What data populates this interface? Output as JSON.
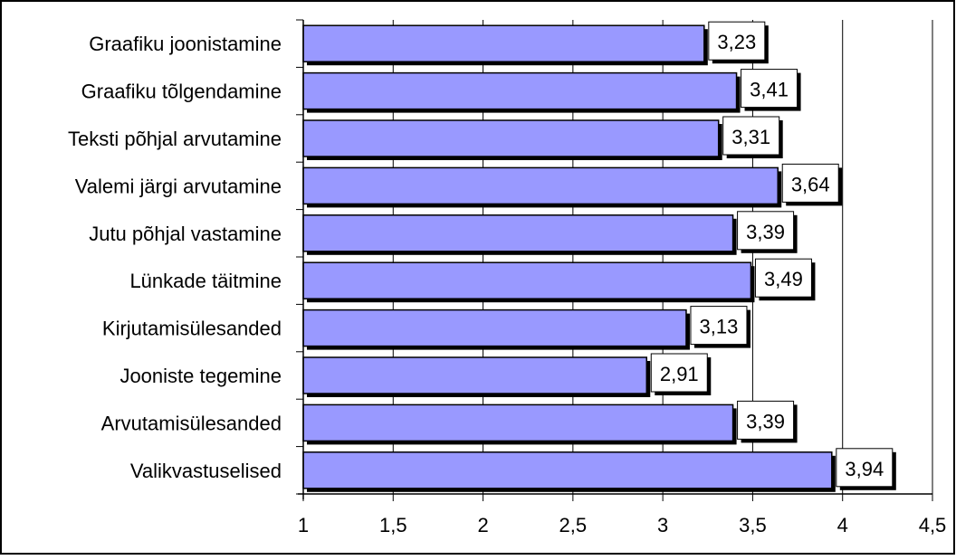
{
  "chart_data": {
    "type": "bar",
    "orientation": "horizontal",
    "title": "",
    "xlabel": "",
    "ylabel": "",
    "categories": [
      "Graafiku joonistamine",
      "Graafiku tõlgendamine",
      "Teksti põhjal arvutamine",
      "Valemi järgi arvutamine",
      "Jutu põhjal vastamine",
      "Lünkade täitmine",
      "Kirjutamisülesanded",
      "Jooniste tegemine",
      "Arvutamisülesanded",
      "Valikvastuselised"
    ],
    "values": [
      3.23,
      3.41,
      3.31,
      3.64,
      3.39,
      3.49,
      3.13,
      2.91,
      3.39,
      3.94
    ],
    "value_labels": [
      "3,23",
      "3,41",
      "3,31",
      "3,64",
      "3,39",
      "3,49",
      "3,13",
      "2,91",
      "3,39",
      "3,94"
    ],
    "xlim": [
      1,
      4.5
    ],
    "x_ticks": [
      1,
      1.5,
      2,
      2.5,
      3,
      3.5,
      4,
      4.5
    ],
    "x_tick_labels": [
      "1",
      "1,5",
      "2",
      "2,5",
      "3",
      "3,5",
      "4",
      "4,5"
    ],
    "grid": "vertical",
    "legend": "none",
    "colors": {
      "bar_fill": "#9999ff",
      "bar_stroke": "#000000",
      "grid": "#000000",
      "background": "#ffffff"
    }
  }
}
